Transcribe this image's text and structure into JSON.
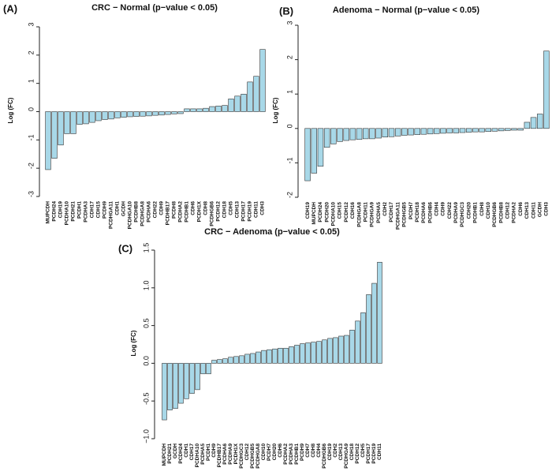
{
  "chart_data": [
    {
      "type": "bar",
      "panel_label": "(A)",
      "title": "CRC − Normal (p−value < 0.05)",
      "y_label": "Log (FC)",
      "color": "#a8d8e8",
      "categories": [
        "MUPCDH",
        "PCDH24",
        "CDH19",
        "PCDHA10",
        "PCDH21",
        "PCDH1",
        "PCDHA3",
        "CDH17",
        "CDH15",
        "PCDH9",
        "PCDHGA11",
        "CDH1",
        "GCDH",
        "PCDHGA10",
        "PCDHB8",
        "PCDHGA8",
        "PCDHA6",
        "CDH22",
        "CDH9",
        "PCDHB17",
        "PCDH8",
        "PCDHA2",
        "PCDHB1",
        "CDH6",
        "PCDH1X",
        "CDH8",
        "PCDHGB6",
        "PCDH12",
        "CDH18",
        "CDH5",
        "CDH13",
        "PCDH17",
        "PCDH19",
        "CDH11",
        "CDH3"
      ],
      "values": [
        -2.05,
        -1.65,
        -1.18,
        -0.78,
        -0.78,
        -0.45,
        -0.43,
        -0.38,
        -0.32,
        -0.28,
        -0.26,
        -0.22,
        -0.2,
        -0.18,
        -0.17,
        -0.16,
        -0.15,
        -0.13,
        -0.12,
        -0.1,
        -0.08,
        -0.07,
        0.1,
        0.1,
        0.1,
        0.12,
        0.18,
        0.2,
        0.22,
        0.45,
        0.55,
        0.62,
        1.05,
        1.25,
        2.2
      ],
      "ylim": [
        -3,
        3
      ],
      "yticks": [
        -3,
        -2,
        -1,
        0,
        1,
        2,
        3
      ]
    },
    {
      "type": "bar",
      "panel_label": "(B)",
      "title": "Adenoma − Normal (p−value < 0.05)",
      "y_label": "Log (FC)",
      "color": "#a8d8e8",
      "categories": [
        "CDH19",
        "MUPCDH",
        "PCDH24",
        "PCDH20",
        "PCDHA10",
        "CDH15",
        "PCDH12",
        "CDH16",
        "PCDHGA8",
        "PCDH11",
        "PCDHGA9",
        "PCDHA5",
        "CDH2",
        "PCDH17",
        "PCDHGA11",
        "PCDHGB5",
        "PCDH7",
        "PCDH18",
        "PCDHA6",
        "PCDHB6",
        "CDH4",
        "CDH9",
        "CDH22",
        "PCDHA9",
        "PCDHGC3",
        "CDH20",
        "PCDHB1",
        "CDH8",
        "CDH10",
        "PCDHGB6",
        "PCDHB8",
        "CDH12",
        "PCDHA2",
        "CDH6",
        "CDH13",
        "CDH11",
        "GCDH",
        "CDH3"
      ],
      "values": [
        -1.52,
        -1.3,
        -1.1,
        -0.55,
        -0.45,
        -0.38,
        -0.35,
        -0.33,
        -0.32,
        -0.3,
        -0.3,
        -0.28,
        -0.25,
        -0.24,
        -0.22,
        -0.2,
        -0.19,
        -0.18,
        -0.17,
        -0.16,
        -0.15,
        -0.14,
        -0.13,
        -0.13,
        -0.12,
        -0.11,
        -0.1,
        -0.1,
        -0.09,
        -0.08,
        -0.07,
        -0.06,
        -0.05,
        -0.05,
        0.18,
        0.32,
        0.42,
        2.25
      ],
      "ylim": [
        -2,
        3
      ],
      "yticks": [
        -2,
        -1,
        0,
        1,
        2,
        3
      ]
    },
    {
      "type": "bar",
      "panel_label": "(C)",
      "title": "CRC − Adenoma (p−value < 0.05)",
      "y_label": "Log (FC)",
      "color": "#a8d8e8",
      "categories": [
        "MUPCDH",
        "PCDH21",
        "GCDH",
        "PCDH24",
        "CDH1",
        "CDH17",
        "PCDHA10",
        "PCDHA5",
        "PCDH1",
        "CDH9",
        "PCDHB17",
        "PCDHA6",
        "PCDHA9",
        "PCDH1X",
        "PCDHGC3",
        "CDH12",
        "PCDHGB5",
        "PCDHGA8",
        "CDH10",
        "PCDH7",
        "CDH20",
        "CDH6",
        "PCDHA2",
        "PCDHA3",
        "PCDHB1",
        "PCDH9",
        "CDH7",
        "CDH8",
        "CDH4",
        "PCDHGB6",
        "CDH19",
        "CDH2",
        "CDH13",
        "PCDHGA9",
        "CDH18",
        "PCDH12",
        "CDH5",
        "PCDH17",
        "PCDH19",
        "CDH11"
      ],
      "values": [
        -0.75,
        -0.62,
        -0.6,
        -0.53,
        -0.47,
        -0.4,
        -0.35,
        -0.14,
        -0.14,
        0.04,
        0.05,
        0.06,
        0.08,
        0.09,
        0.1,
        0.12,
        0.13,
        0.15,
        0.17,
        0.18,
        0.19,
        0.2,
        0.2,
        0.22,
        0.24,
        0.26,
        0.27,
        0.28,
        0.29,
        0.31,
        0.33,
        0.34,
        0.36,
        0.37,
        0.44,
        0.56,
        0.67,
        0.91,
        1.06,
        1.34
      ],
      "ylim": [
        -1,
        1.5
      ],
      "yticks": [
        {
          "value": -1,
          "label": "−1.0"
        },
        -0.5,
        {
          "value": 0,
          "label": "0.0"
        },
        0.5,
        {
          "value": 1,
          "label": "1.0"
        },
        1.5
      ]
    }
  ]
}
